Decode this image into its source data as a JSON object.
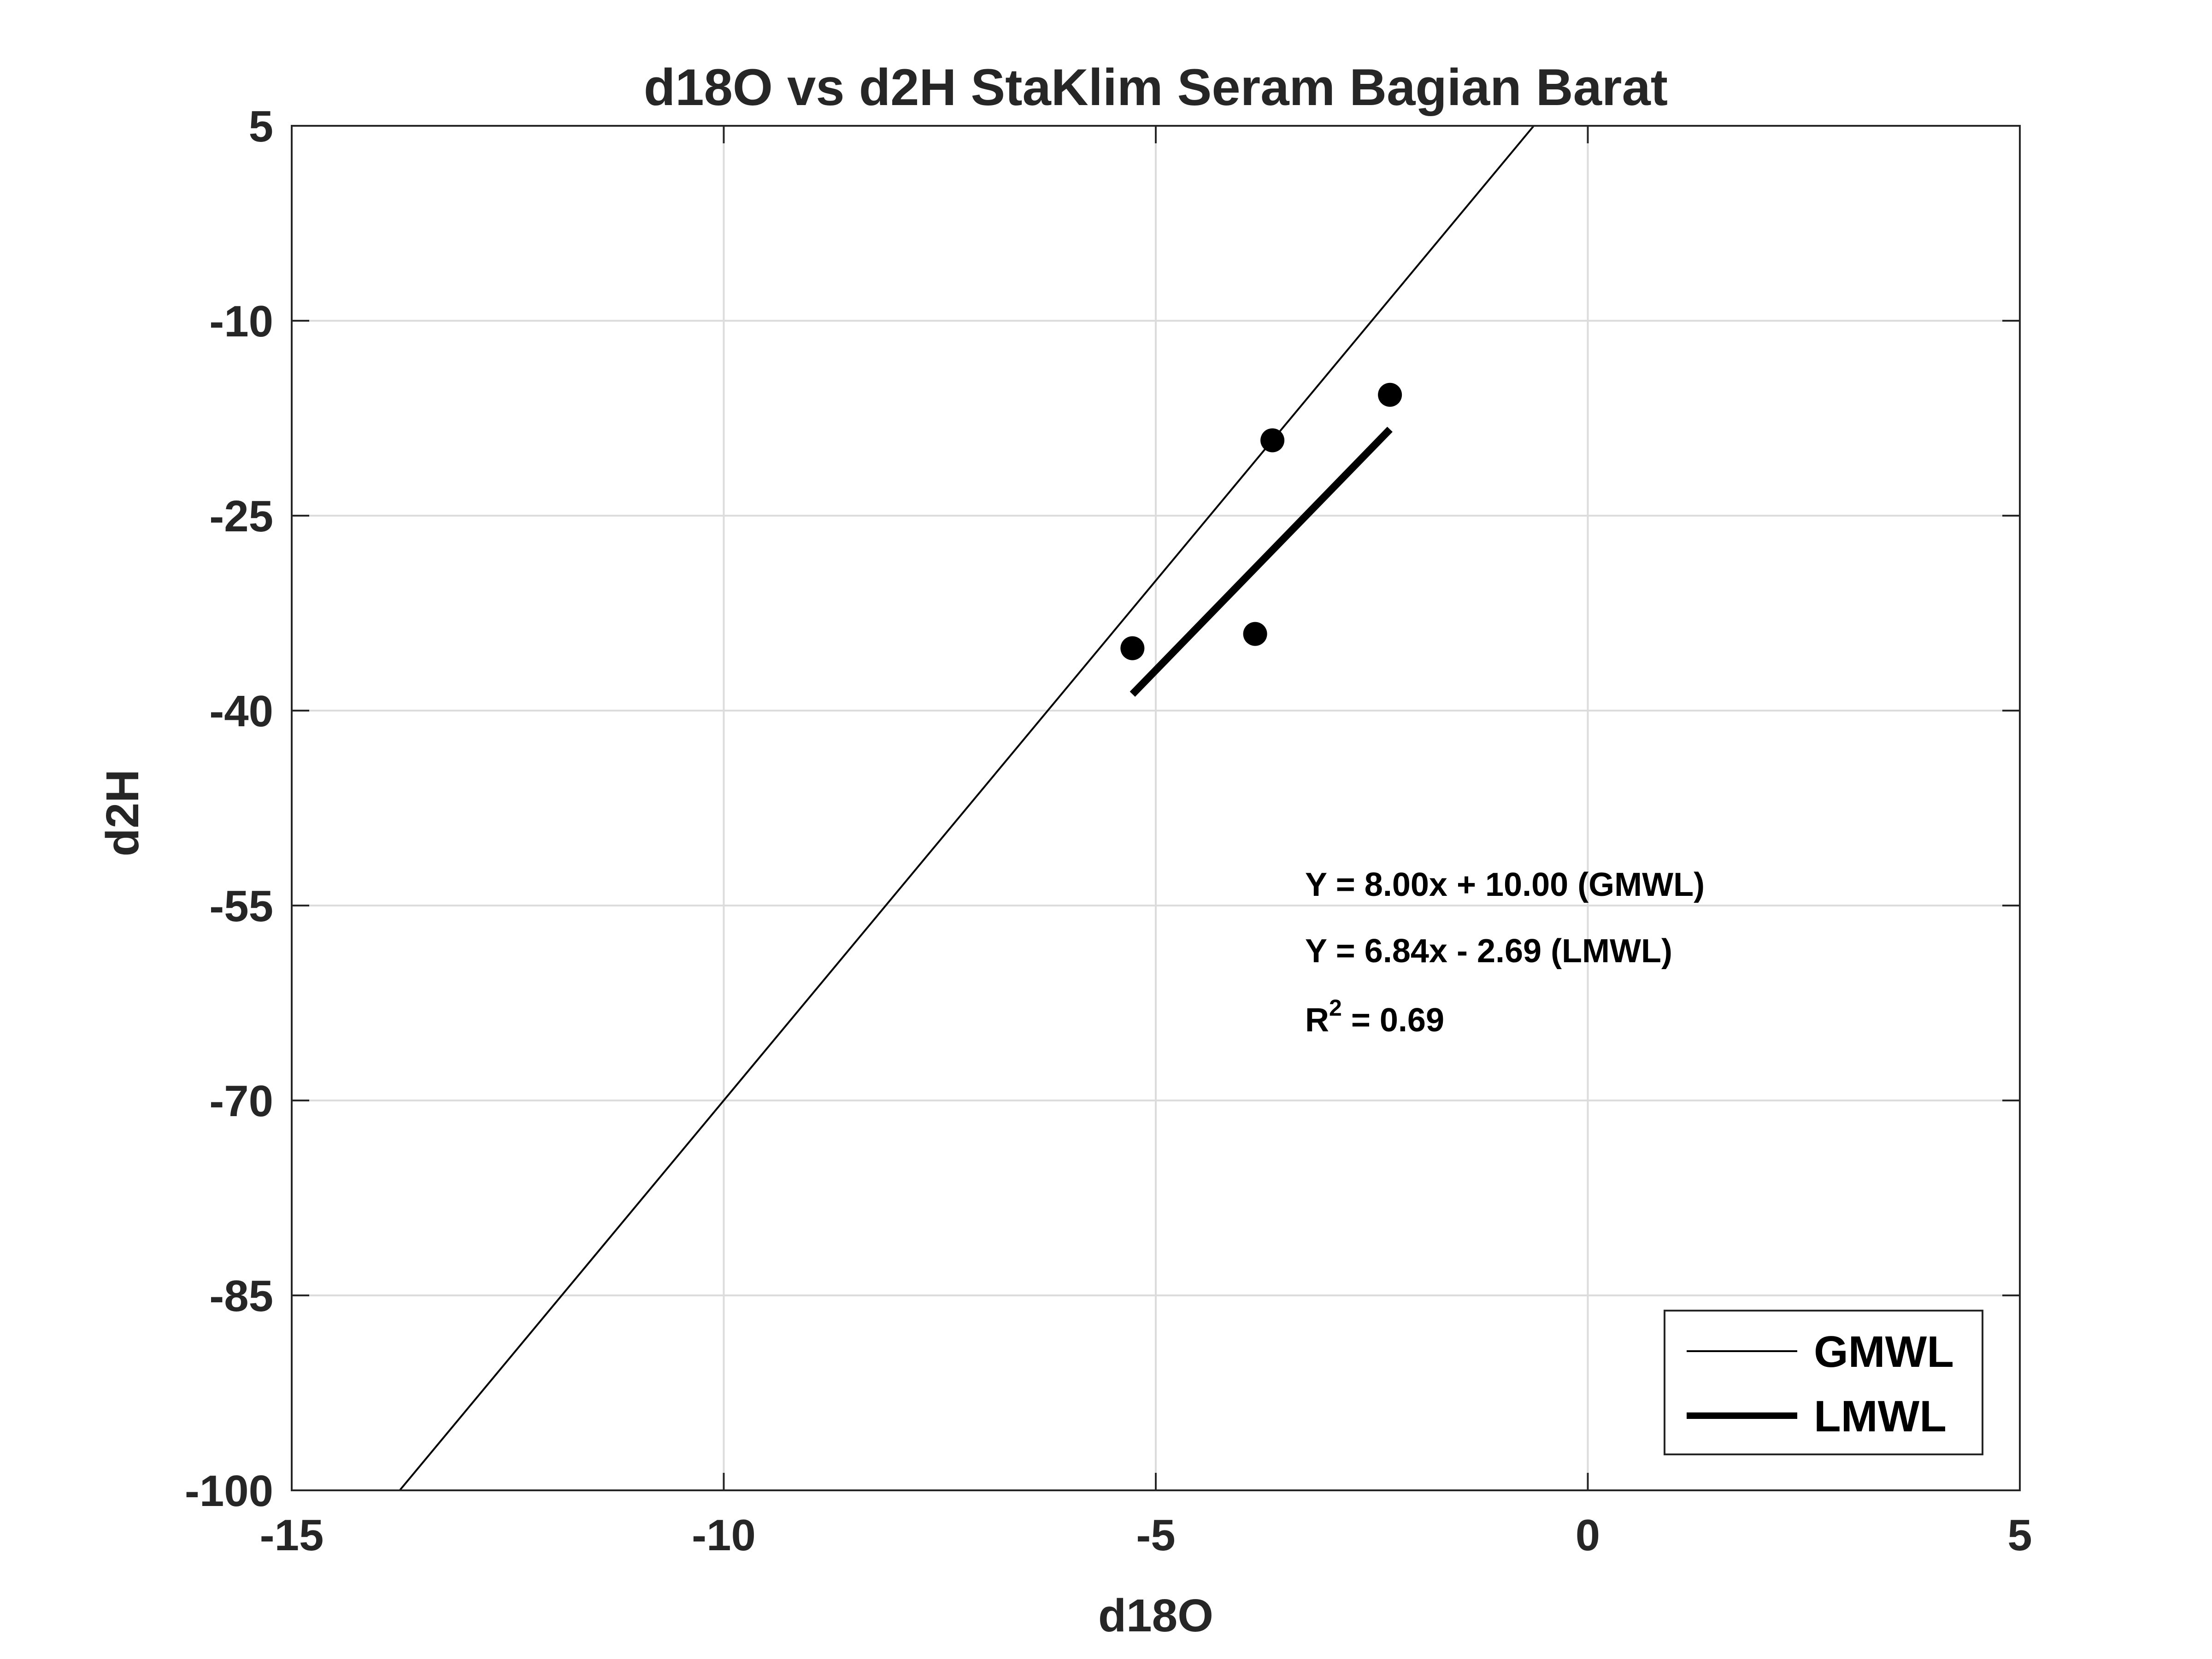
{
  "chart_data": {
    "type": "scatter",
    "title": "d18O vs d2H StaKlim Seram Bagian Barat",
    "xlabel": "d18O",
    "ylabel": "d2H",
    "xlim": [
      -15,
      5
    ],
    "ylim": [
      -100,
      5
    ],
    "xticks": [
      -15,
      -10,
      -5,
      0,
      5
    ],
    "yticks": [
      -100,
      -85,
      -70,
      -55,
      -40,
      -25,
      -10,
      5
    ],
    "grid": true,
    "points": [
      {
        "x": -5.27,
        "y": -35.2
      },
      {
        "x": -3.85,
        "y": -34.1
      },
      {
        "x": -3.65,
        "y": -19.2
      },
      {
        "x": -2.29,
        "y": -15.7
      }
    ],
    "series": [
      {
        "name": "GMWL",
        "type": "line",
        "slope": 8.0,
        "intercept": 10.0,
        "x": [
          -13.75,
          -0.625
        ]
      },
      {
        "name": "LMWL",
        "type": "line",
        "slope": 6.84,
        "intercept": -2.69,
        "x": [
          -5.27,
          -2.29
        ]
      }
    ],
    "legend": {
      "position": "bottom-right",
      "entries": [
        "GMWL",
        "LMWL"
      ]
    },
    "annotations": {
      "gmwl_eq": "Y = 8.00x + 10.00 (GMWL)",
      "lmwl_eq": "Y = 6.84x - 2.69 (LMWL)",
      "r2_prefix": "R",
      "r2_sup": "2",
      "r2_value": " = 0.69"
    },
    "colors": {
      "line": "#000000",
      "marker": "#000000",
      "grid": "#dcdcdc",
      "axis": "#262626"
    }
  }
}
